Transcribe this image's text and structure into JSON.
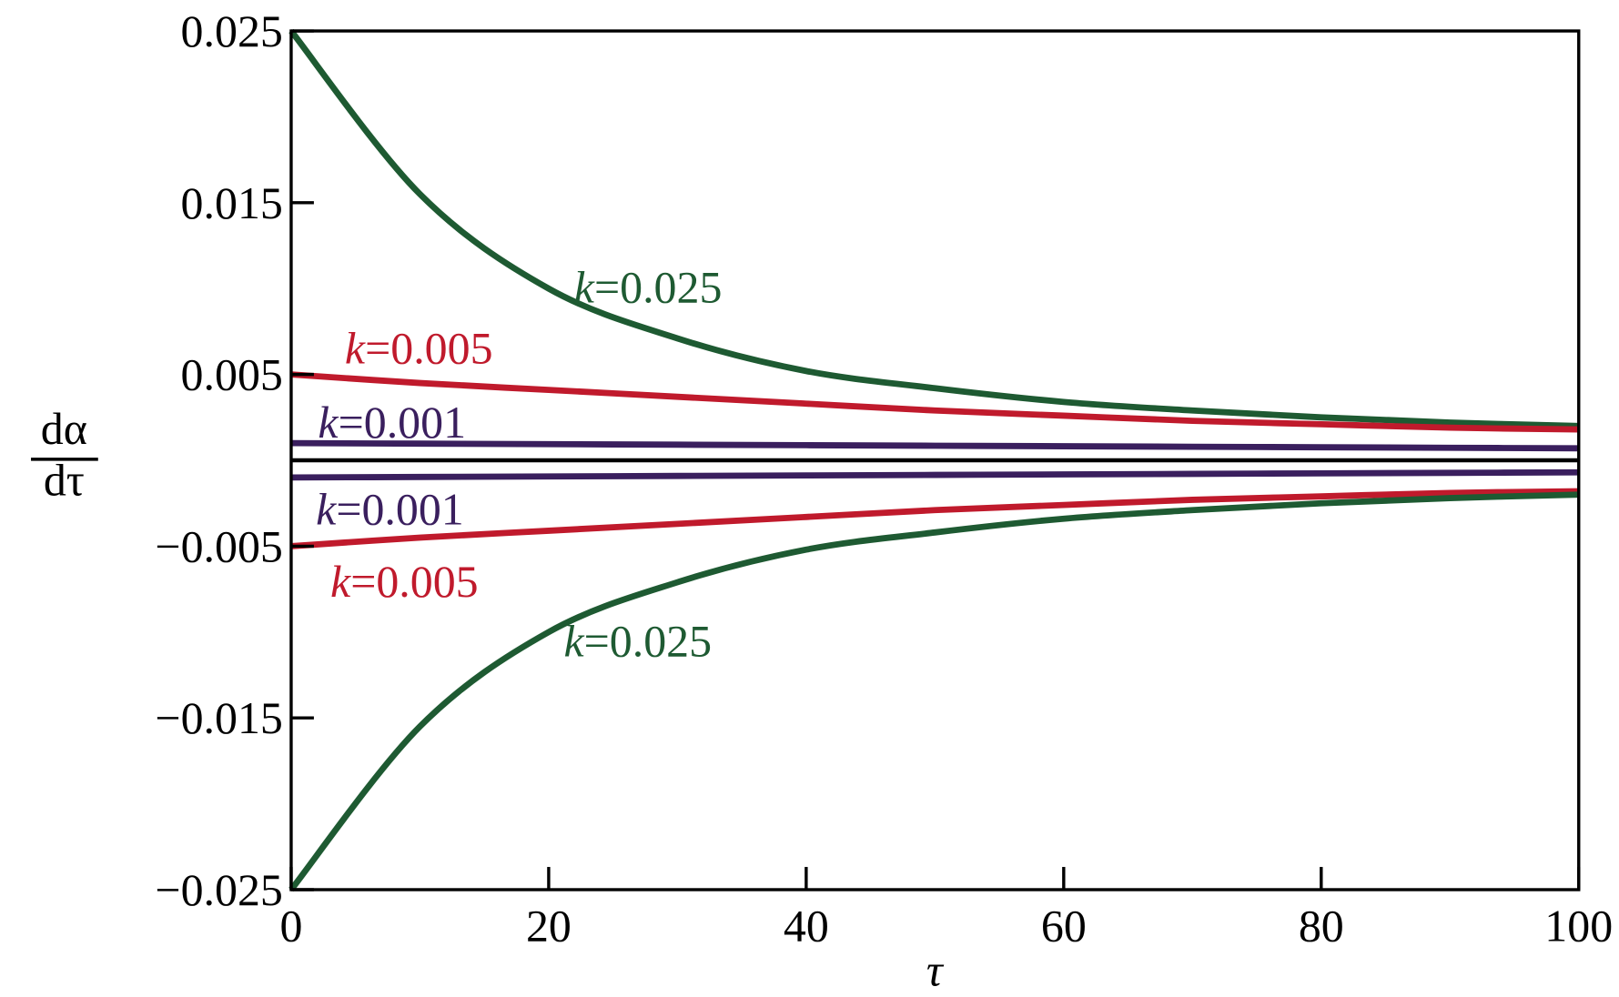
{
  "chart_data": {
    "type": "line",
    "title": "",
    "xlabel": "τ",
    "ylabel_numerator": "dα",
    "ylabel_denominator": "dτ",
    "xlim": [
      0,
      100
    ],
    "ylim": [
      -0.025,
      0.025
    ],
    "grid": false,
    "legend": "none (inline curve labels)",
    "xticks": [
      "0",
      "20",
      "40",
      "60",
      "80",
      "100"
    ],
    "xtick_values": [
      0,
      20,
      40,
      60,
      80,
      100
    ],
    "yticks": [
      "0.025",
      "0.015",
      "0.005",
      "−0.005",
      "−0.015",
      "−0.025"
    ],
    "ytick_values": [
      0.025,
      0.015,
      0.005,
      -0.005,
      -0.015,
      -0.025
    ],
    "x": [
      0,
      10,
      20,
      30,
      40,
      50,
      60,
      70,
      80,
      90,
      100
    ],
    "zero_line": {
      "y": 0,
      "color": "#000000"
    },
    "series": [
      {
        "name": "k=0.025 (upper)",
        "label_k": "k",
        "label_value": "=0.025",
        "color": "#1e5a32",
        "values": [
          0.025,
          0.0155,
          0.01,
          0.0071,
          0.0052,
          0.0042,
          0.0034,
          0.0029,
          0.0025,
          0.0022,
          0.002
        ]
      },
      {
        "name": "k=0.005 (upper)",
        "label_k": "k",
        "label_value": "=0.005",
        "color": "#c01a2c",
        "values": [
          0.005,
          0.0045,
          0.0041,
          0.0037,
          0.0033,
          0.0029,
          0.0026,
          0.0023,
          0.0021,
          0.0019,
          0.0018
        ]
      },
      {
        "name": "k=0.001 (upper)",
        "label_k": "k",
        "label_value": "=0.001",
        "color": "#3a1f5e",
        "values": [
          0.001,
          0.00097,
          0.00094,
          0.00091,
          0.00088,
          0.00085,
          0.00082,
          0.00079,
          0.00076,
          0.00073,
          0.0007
        ]
      },
      {
        "name": "k=0.001 (lower)",
        "label_k": "k",
        "label_value": "=0.001",
        "color": "#3a1f5e",
        "values": [
          -0.001,
          -0.00097,
          -0.00094,
          -0.00091,
          -0.00088,
          -0.00085,
          -0.00082,
          -0.00079,
          -0.00076,
          -0.00073,
          -0.0007
        ]
      },
      {
        "name": "k=0.005 (lower)",
        "label_k": "k",
        "label_value": "=0.005",
        "color": "#c01a2c",
        "values": [
          -0.005,
          -0.0045,
          -0.0041,
          -0.0037,
          -0.0033,
          -0.0029,
          -0.0026,
          -0.0023,
          -0.0021,
          -0.0019,
          -0.0018
        ]
      },
      {
        "name": "k=0.025 (lower)",
        "label_k": "k",
        "label_value": "=0.025",
        "color": "#1e5a32",
        "values": [
          -0.025,
          -0.0155,
          -0.01,
          -0.0071,
          -0.0052,
          -0.0042,
          -0.0034,
          -0.0029,
          -0.0025,
          -0.0022,
          -0.002
        ]
      }
    ]
  }
}
